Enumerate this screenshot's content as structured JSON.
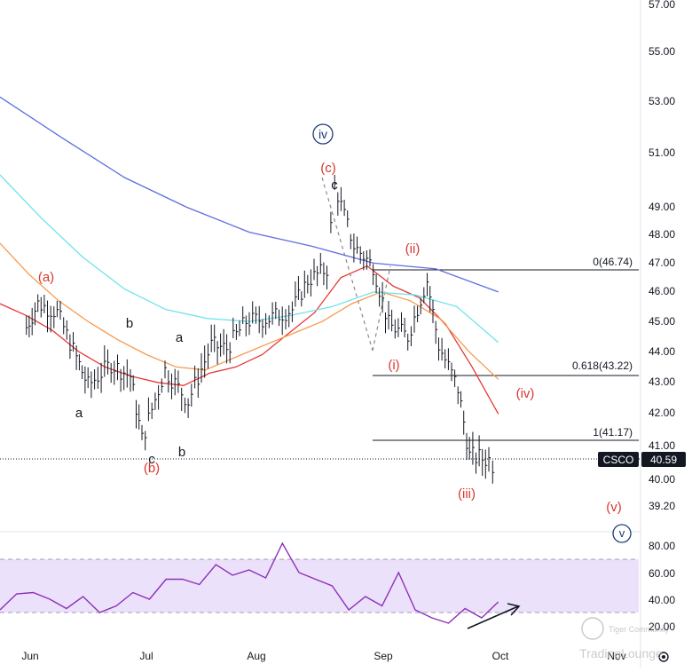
{
  "chart_data": {
    "type": "line",
    "symbol": "CSCO",
    "last_price": "40.59",
    "x_ticks": [
      "Jun",
      "Jul",
      "Aug",
      "Sep",
      "Oct",
      "Nov"
    ],
    "y_ticks": [
      "57.00",
      "55.00",
      "53.00",
      "51.00",
      "49.00",
      "48.00",
      "47.00",
      "46.00",
      "45.00",
      "44.00",
      "43.00",
      "42.00",
      "41.00",
      "40.00",
      "39.20"
    ],
    "log_scale": true,
    "grid": false,
    "fib_levels": [
      {
        "label": "0(46.74)",
        "value": 46.74
      },
      {
        "label": "0.618(43.22)",
        "value": 43.22
      },
      {
        "label": "1(41.17)",
        "value": 41.17
      }
    ],
    "wave_labels": [
      {
        "text": "iv",
        "style": "circled"
      },
      {
        "text": "(c)",
        "style": "red"
      },
      {
        "text": "c",
        "style": "black"
      },
      {
        "text": "(ii)",
        "style": "red"
      },
      {
        "text": "(a)",
        "style": "red"
      },
      {
        "text": "b",
        "style": "black"
      },
      {
        "text": "a",
        "style": "black"
      },
      {
        "text": "a",
        "style": "black"
      },
      {
        "text": "(i)",
        "style": "red"
      },
      {
        "text": "(iv)",
        "style": "red"
      },
      {
        "text": "c",
        "style": "black"
      },
      {
        "text": "b",
        "style": "black"
      },
      {
        "text": "(b)",
        "style": "red"
      },
      {
        "text": "(iii)",
        "style": "red"
      },
      {
        "text": "(v)",
        "style": "red"
      },
      {
        "text": "v",
        "style": "circled"
      }
    ],
    "price_bars": [
      {
        "date": "2022-05-31",
        "close": 44.8
      },
      {
        "date": "2022-06-03",
        "close": 45.6
      },
      {
        "date": "2022-06-08",
        "close": 45.3
      },
      {
        "date": "2022-06-13",
        "close": 43.8
      },
      {
        "date": "2022-06-16",
        "close": 42.9
      },
      {
        "date": "2022-06-22",
        "close": 43.6
      },
      {
        "date": "2022-06-27",
        "close": 43.2
      },
      {
        "date": "2022-06-30",
        "close": 41.2
      },
      {
        "date": "2022-07-06",
        "close": 43.4
      },
      {
        "date": "2022-07-12",
        "close": 42.4
      },
      {
        "date": "2022-07-18",
        "close": 44.2
      },
      {
        "date": "2022-07-22",
        "close": 44.1
      },
      {
        "date": "2022-07-27",
        "close": 45.0
      },
      {
        "date": "2022-08-02",
        "close": 45.1
      },
      {
        "date": "2022-08-08",
        "close": 45.4
      },
      {
        "date": "2022-08-12",
        "close": 46.4
      },
      {
        "date": "2022-08-17",
        "close": 46.8
      },
      {
        "date": "2022-08-19",
        "close": 49.8
      },
      {
        "date": "2022-08-24",
        "close": 47.6
      },
      {
        "date": "2022-08-29",
        "close": 46.9
      },
      {
        "date": "2022-09-02",
        "close": 44.9
      },
      {
        "date": "2022-09-07",
        "close": 44.5
      },
      {
        "date": "2022-09-12",
        "close": 46.4
      },
      {
        "date": "2022-09-15",
        "close": 44.2
      },
      {
        "date": "2022-09-20",
        "close": 42.8
      },
      {
        "date": "2022-09-23",
        "close": 40.7
      },
      {
        "date": "2022-09-28",
        "close": 40.6
      },
      {
        "date": "2022-09-30",
        "close": 40.3
      }
    ],
    "moving_averages": [
      {
        "color": "#e53935",
        "values": [
          45.6,
          45.2,
          44.7,
          44.0,
          43.5,
          43.2,
          43.0,
          42.9,
          43.3,
          43.5,
          43.9,
          44.6,
          45.3,
          46.5,
          46.9,
          46.2,
          45.8,
          44.9,
          43.5,
          42.0
        ]
      },
      {
        "color": "#f59a50",
        "values": [
          47.7,
          46.6,
          45.7,
          45.0,
          44.4,
          43.9,
          43.5,
          43.4,
          43.8,
          44.2,
          44.6,
          45.0,
          45.6,
          46.0,
          45.7,
          45.1,
          44.0,
          43.1
        ]
      },
      {
        "color": "#6fe3ec",
        "values": [
          50.2,
          48.6,
          47.2,
          46.1,
          45.4,
          45.1,
          45.0,
          45.2,
          45.5,
          46.0,
          45.9,
          45.5,
          44.3
        ]
      },
      {
        "color": "#5d6ee0",
        "values": [
          53.2,
          51.6,
          50.1,
          49.0,
          48.1,
          47.6,
          47.0,
          46.8,
          46.0
        ]
      }
    ]
  },
  "rsi": {
    "y_ticks": [
      "80.00",
      "60.00",
      "40.00",
      "20.00"
    ],
    "upper": 70,
    "lower": 30,
    "values": [
      32,
      44,
      45,
      40,
      33,
      42,
      30,
      35,
      45,
      40,
      55,
      55,
      51,
      66,
      58,
      62,
      56,
      82,
      60,
      55,
      50,
      32,
      42,
      35,
      60,
      32,
      26,
      22,
      33,
      26,
      38
    ]
  },
  "watermark": "TradingLounge",
  "watermark_small": "Tiger Community"
}
